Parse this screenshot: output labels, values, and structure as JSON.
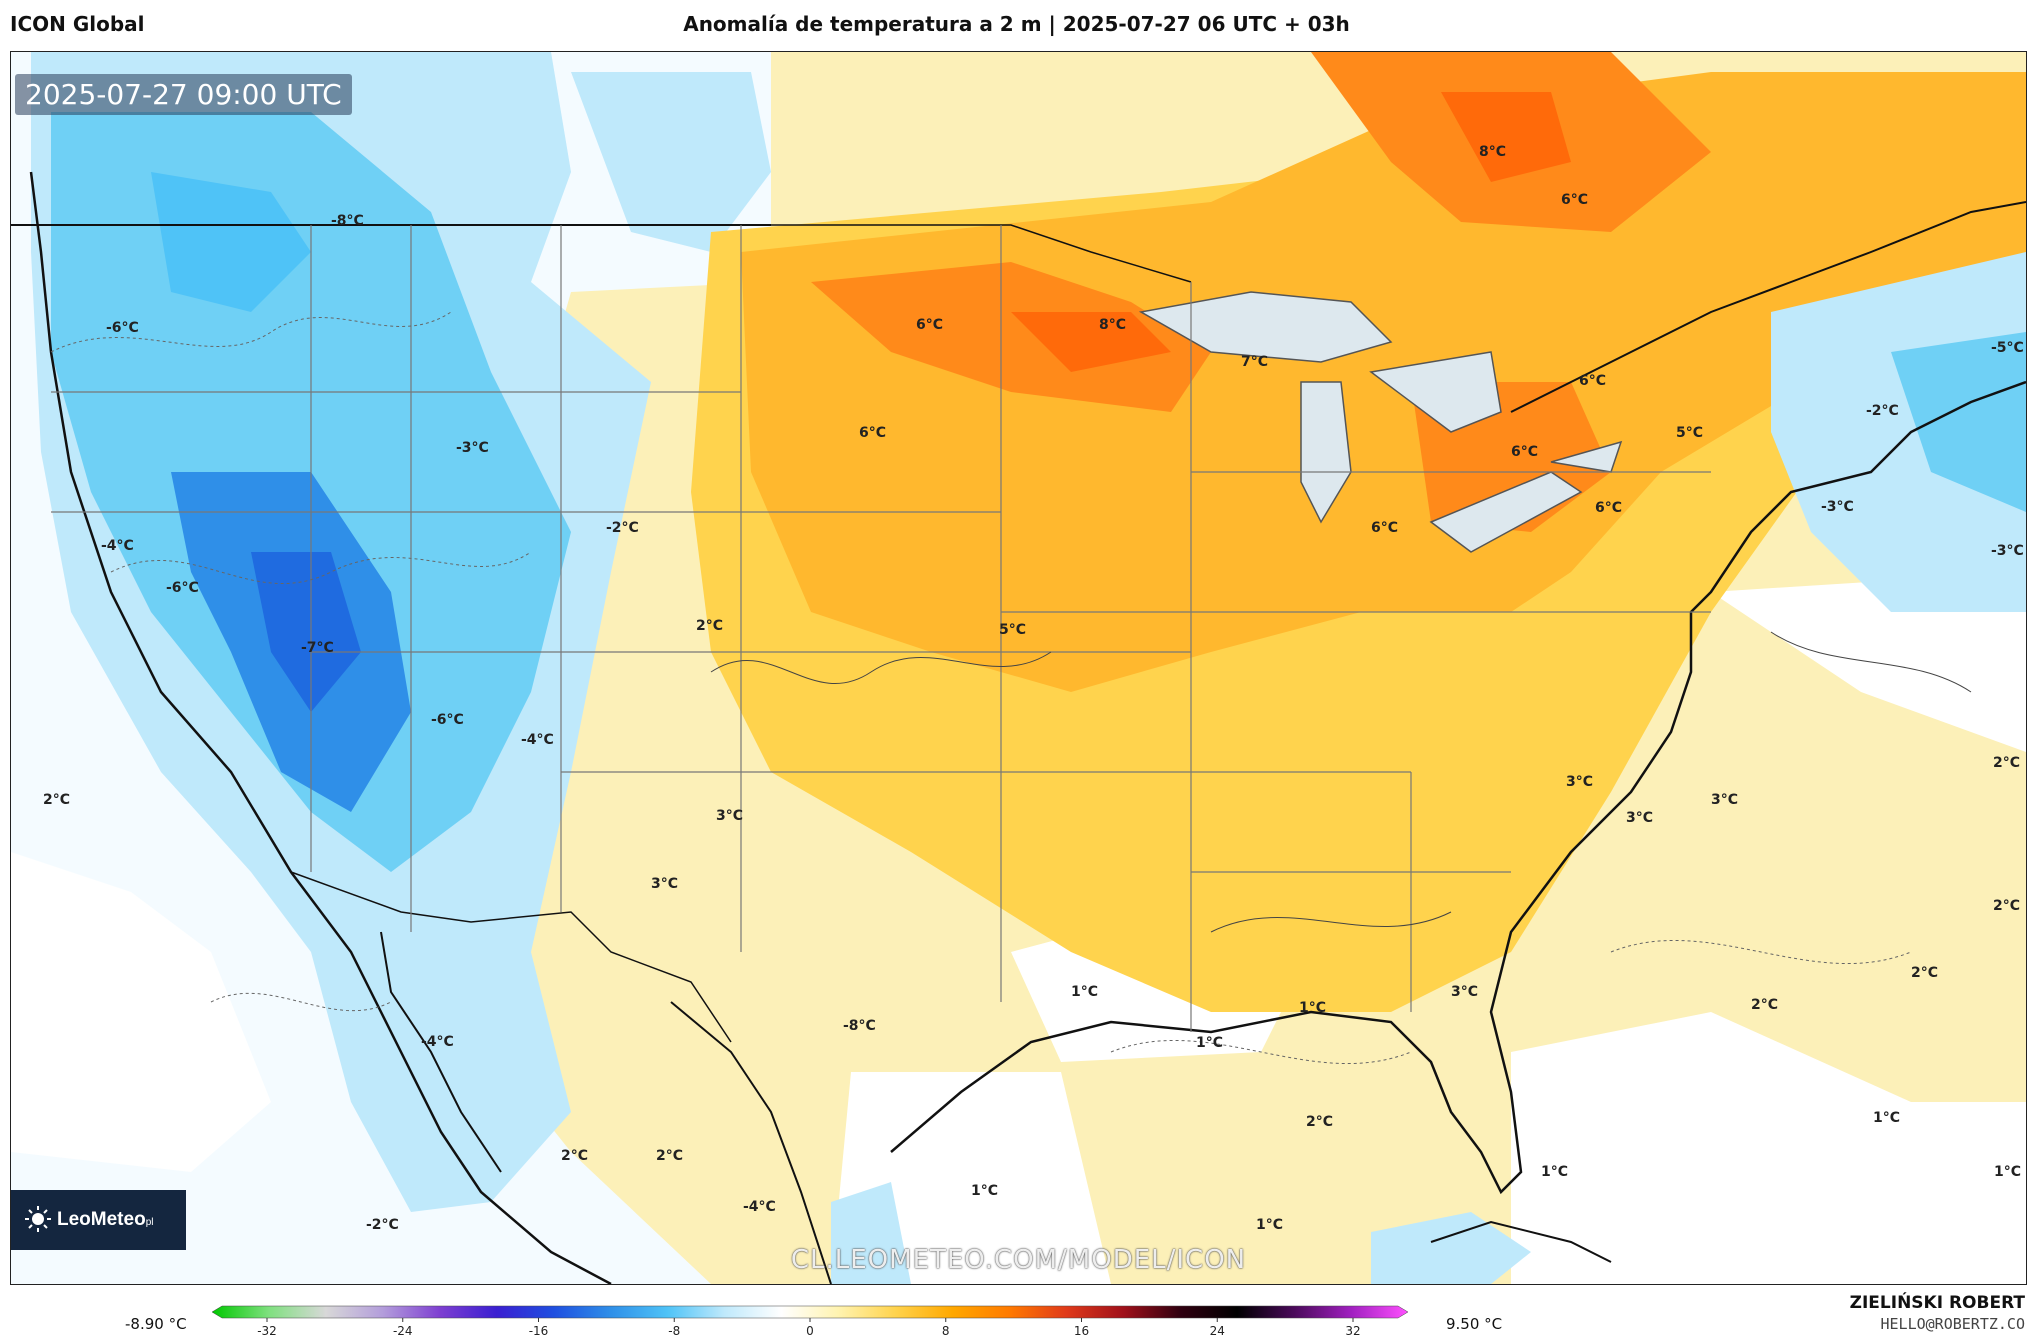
{
  "header": {
    "model_name": "ICON Global",
    "title": "Anomalía de temperatura a 2 m | 2025-07-27 06 UTC + 03h"
  },
  "map": {
    "valid_time": "2025-07-27 09:00 UTC",
    "watermark_url": "CL.LEOMETEO.COM/MODEL/ICON",
    "logo_text": "LeoMeteo",
    "logo_suffix": "pl",
    "temperature_labels": [
      {
        "id": "pacific-nw-1",
        "text": "-6°C"
      },
      {
        "id": "pacific-nw-2",
        "text": "-8°C"
      },
      {
        "id": "idaho",
        "text": "-3°C"
      },
      {
        "id": "oregon-coast",
        "text": "-4°C"
      },
      {
        "id": "n-california",
        "text": "-6°C"
      },
      {
        "id": "nevada",
        "text": "-7°C"
      },
      {
        "id": "utah",
        "text": "-2°C"
      },
      {
        "id": "s-california",
        "text": "-6°C"
      },
      {
        "id": "arizona",
        "text": "-4°C"
      },
      {
        "id": "colorado",
        "text": "2°C"
      },
      {
        "id": "new-mexico",
        "text": "3°C"
      },
      {
        "id": "s-new-mexico",
        "text": "3°C"
      },
      {
        "id": "pacific",
        "text": "2°C"
      },
      {
        "id": "baja",
        "text": "-4°C"
      },
      {
        "id": "mexico-coast",
        "text": "2°C"
      },
      {
        "id": "mexico-pacific",
        "text": "-2°C"
      },
      {
        "id": "mexico-central",
        "text": "2°C"
      },
      {
        "id": "mexico-south",
        "text": "-4°C"
      },
      {
        "id": "mexico-north",
        "text": "-8°C"
      },
      {
        "id": "north-dakota",
        "text": "6°C"
      },
      {
        "id": "south-dakota",
        "text": "6°C"
      },
      {
        "id": "minnesota",
        "text": "8°C"
      },
      {
        "id": "wisconsin",
        "text": "7°C"
      },
      {
        "id": "ontario",
        "text": "8°C"
      },
      {
        "id": "quebec",
        "text": "6°C"
      },
      {
        "id": "ontario-south",
        "text": "6°C"
      },
      {
        "id": "michigan-east",
        "text": "6°C"
      },
      {
        "id": "new-york",
        "text": "5°C"
      },
      {
        "id": "ohio",
        "text": "6°C"
      },
      {
        "id": "indiana",
        "text": "6°C"
      },
      {
        "id": "kansas",
        "text": "5°C"
      },
      {
        "id": "maine",
        "text": "-5°C"
      },
      {
        "id": "new-england",
        "text": "-2°C"
      },
      {
        "id": "atlantic-ne",
        "text": "-3°C"
      },
      {
        "id": "atlantic-far-ne",
        "text": "-3°C"
      },
      {
        "id": "carolinas",
        "text": "3°C"
      },
      {
        "id": "georgia",
        "text": "3°C"
      },
      {
        "id": "atlantic-1",
        "text": "3°C"
      },
      {
        "id": "atlantic-2",
        "text": "2°C"
      },
      {
        "id": "atlantic-3",
        "text": "2°C"
      },
      {
        "id": "atlantic-4",
        "text": "2°C"
      },
      {
        "id": "atlantic-5",
        "text": "2°C"
      },
      {
        "id": "atlantic-6",
        "text": "1°C"
      },
      {
        "id": "atlantic-7",
        "text": "1°C"
      },
      {
        "id": "florida",
        "text": "3°C"
      },
      {
        "id": "gulf-1",
        "text": "1°C"
      },
      {
        "id": "gulf-2",
        "text": "1°C"
      },
      {
        "id": "gulf-3",
        "text": "1°C"
      },
      {
        "id": "gulf-4",
        "text": "2°C"
      },
      {
        "id": "caribbean-1",
        "text": "1°C"
      },
      {
        "id": "caribbean-2",
        "text": "1°C"
      },
      {
        "id": "caribbean-3",
        "text": "1°C"
      }
    ]
  },
  "colorbar": {
    "min_label": "-8.90 °C",
    "max_label": "9.50 °C",
    "ticks": [
      "-32",
      "-24",
      "-16",
      "-8",
      "0",
      "8",
      "16",
      "24",
      "32"
    ],
    "colors": [
      "#00c800",
      "#7fe07f",
      "#d8d8d8",
      "#b39ddb",
      "#7e3fd1",
      "#3a1fd1",
      "#1f4fe0",
      "#2f8fe8",
      "#4fc3f7",
      "#bfe9fb",
      "#ffffff",
      "#fff3b0",
      "#ffd34d",
      "#ffa800",
      "#ff7a00",
      "#e03a1a",
      "#a0101a",
      "#300010",
      "#000000",
      "#4a0a5a",
      "#a020c0",
      "#ff50ff"
    ]
  },
  "footer": {
    "author": "ZIELIŃSKI ROBERT",
    "email": "HELLO@ROBERTZ.CO"
  }
}
